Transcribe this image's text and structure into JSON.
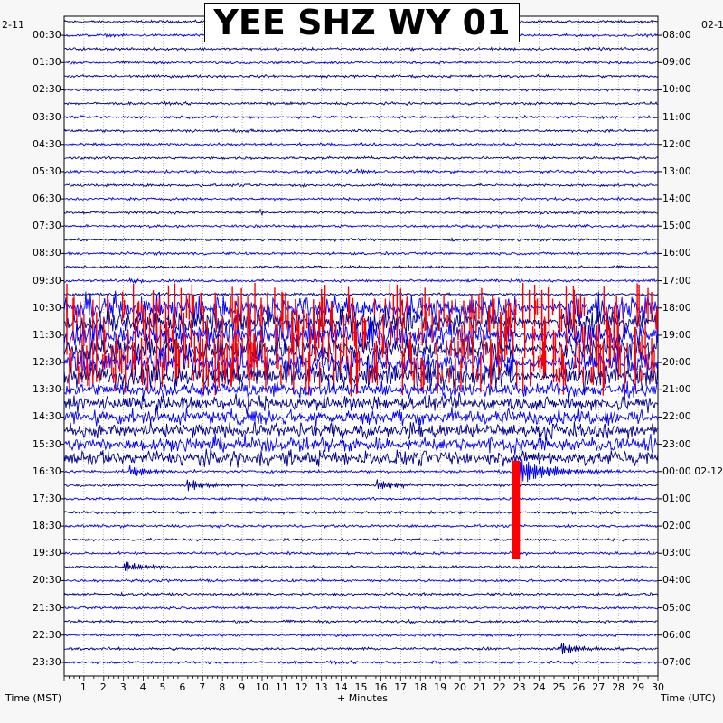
{
  "chart_data": {
    "type": "line",
    "title": "YEE SHZ WY 01",
    "left_corner_label": "2-11",
    "right_corner_label": "02-1",
    "xlabel": "+ Minutes",
    "left_axis_title": "Time (MST)",
    "right_axis_title": "Time (UTC)",
    "xlim": [
      0,
      30
    ],
    "x_ticks": [
      "1",
      "2",
      "3",
      "4",
      "5",
      "6",
      "7",
      "8",
      "9",
      "10",
      "11",
      "12",
      "13",
      "14",
      "15",
      "16",
      "17",
      "18",
      "19",
      "20",
      "21",
      "22",
      "23",
      "24",
      "25",
      "26",
      "27",
      "28",
      "29",
      "30"
    ],
    "left_time_labels": [
      "00:30",
      "01:30",
      "02:30",
      "03:30",
      "04:30",
      "05:30",
      "06:30",
      "07:30",
      "08:30",
      "09:30",
      "10:30",
      "11:30",
      "12:30",
      "13:30",
      "14:30",
      "15:30",
      "16:30",
      "17:30",
      "18:30",
      "19:30",
      "20:30",
      "21:30",
      "22:30",
      "23:30"
    ],
    "right_time_labels": [
      "08:00",
      "09:00",
      "10:00",
      "11:00",
      "12:00",
      "13:00",
      "14:00",
      "15:00",
      "16:00",
      "17:00",
      "18:00",
      "19:00",
      "20:00",
      "21:00",
      "22:00",
      "23:00",
      "00:00 02-12",
      "01:00",
      "02:00",
      "03:00",
      "04:00",
      "05:00",
      "06:00",
      "07:00"
    ],
    "trace_count": 48,
    "trace_colors": [
      "#00008b",
      "#0000ff",
      "#ff0000"
    ],
    "grid": true,
    "events": [
      {
        "line": 11,
        "minute": 14.8,
        "kind": "small local event"
      },
      {
        "line": 14,
        "minute": 9.9,
        "kind": "spike"
      },
      {
        "line": 19,
        "minute": 3.3,
        "kind": "small local event"
      },
      {
        "line": 33,
        "minute": 3.3,
        "kind": "local earthquake"
      },
      {
        "line": 34,
        "minute": 6.2,
        "kind": "local earthquake"
      },
      {
        "line": 34,
        "minute": 15.8,
        "kind": "local earthquake"
      },
      {
        "line": 33,
        "minute": 22.8,
        "kind": "large clipped earthquake"
      },
      {
        "line": 40,
        "minute": 3.0,
        "kind": "local earthquake"
      },
      {
        "line": 44,
        "minute": 17.4,
        "kind": "spike"
      },
      {
        "line": 46,
        "minute": 25.1,
        "kind": "local earthquake"
      }
    ],
    "noisy_lines": [
      21,
      22,
      23,
      24,
      25,
      26,
      27,
      28,
      29,
      30,
      31,
      32
    ],
    "clipped_lines": [
      21,
      22,
      23,
      24,
      25,
      26
    ]
  }
}
